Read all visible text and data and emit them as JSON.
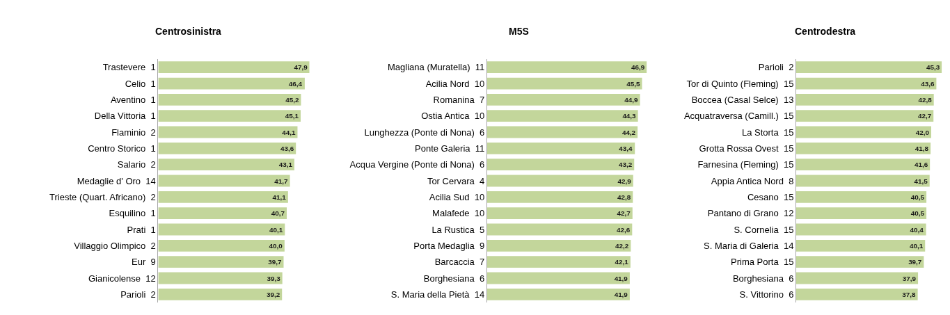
{
  "chart_data": [
    {
      "type": "bar",
      "orientation": "horizontal",
      "title": "Centrosinistra",
      "tick_labels": "y",
      "color": "#c3d69b",
      "categories": [
        "Trastevere  1",
        "Celio  1",
        "Aventino  1",
        "Della Vittoria  1",
        "Flaminio  2",
        "Centro Storico  1",
        "Salario  2",
        "Medaglie d' Oro  14",
        "Trieste (Quart. Africano)  2",
        "Esquilino  1",
        "Prati  1",
        "Villaggio Olimpico  2",
        "Eur  9",
        "Gianicolense  12",
        "Parioli  2"
      ],
      "values": [
        47.9,
        46.4,
        45.2,
        45.1,
        44.1,
        43.6,
        43.1,
        41.7,
        41.1,
        40.7,
        40.1,
        40.0,
        39.7,
        39.3,
        39.2
      ],
      "value_labels": [
        "47,9",
        "46,4",
        "45,2",
        "45,1",
        "44,1",
        "43,6",
        "43,1",
        "41,7",
        "41,1",
        "40,7",
        "40,1",
        "40,0",
        "39,7",
        "39,3",
        "39,2"
      ]
    },
    {
      "type": "bar",
      "orientation": "horizontal",
      "title": "M5S",
      "tick_labels": "y",
      "color": "#c3d69b",
      "categories": [
        "Magliana (Muratella)  11",
        "Acilia Nord  10",
        "Romanina  7",
        "Ostia Antica  10",
        "Lunghezza (Ponte di Nona)  6",
        "Ponte Galeria  11",
        "Acqua Vergine (Ponte di Nona)  6",
        "Tor Cervara  4",
        "Acilia Sud  10",
        "Malafede  10",
        "La Rustica  5",
        "Porta Medaglia  9",
        "Barcaccia  7",
        "Borghesiana  6",
        "S. Maria della Pietà  14"
      ],
      "values": [
        46.9,
        45.5,
        44.9,
        44.3,
        44.2,
        43.4,
        43.2,
        42.9,
        42.8,
        42.7,
        42.6,
        42.2,
        42.1,
        41.9,
        41.9
      ],
      "value_labels": [
        "46,9",
        "45,5",
        "44,9",
        "44,3",
        "44,2",
        "43,4",
        "43,2",
        "42,9",
        "42,8",
        "42,7",
        "42,6",
        "42,2",
        "42,1",
        "41,9",
        "41,9"
      ]
    },
    {
      "type": "bar",
      "orientation": "horizontal",
      "title": "Centrodestra",
      "tick_labels": "y",
      "color": "#c3d69b",
      "categories": [
        "Parioli  2",
        "Tor di Quinto (Fleming)  15",
        "Boccea (Casal Selce)  13",
        "Acquatraversa (Camill.)  15",
        "La Storta  15",
        "Grotta Rossa Ovest  15",
        "Farnesina (Fleming)  15",
        "Appia Antica Nord  8",
        "Cesano  15",
        "Pantano di Grano  12",
        "S. Cornelia  15",
        "S. Maria di Galeria  14",
        "Prima Porta  15",
        "Borghesiana  6",
        "S. Vittorino  6"
      ],
      "values": [
        45.3,
        43.6,
        42.8,
        42.7,
        42.0,
        41.8,
        41.6,
        41.5,
        40.5,
        40.5,
        40.4,
        40.1,
        39.7,
        37.9,
        37.8
      ],
      "value_labels": [
        "45,3",
        "43,6",
        "42,8",
        "42,7",
        "42,0",
        "41,8",
        "41,6",
        "41,5",
        "40,5",
        "40,5",
        "40,4",
        "40,1",
        "39,7",
        "37,9",
        "37,8"
      ]
    }
  ]
}
